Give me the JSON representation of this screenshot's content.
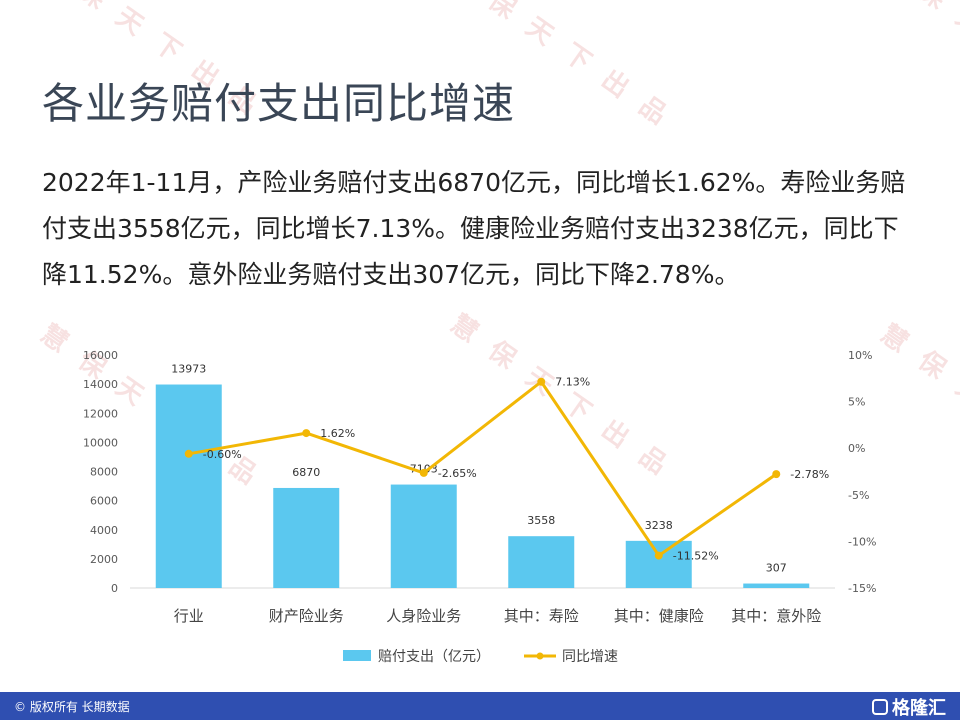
{
  "title": "各业务赔付支出同比增速",
  "paragraph": "2022年1-11月，产险业务赔付支出6870亿元，同比增长1.62%。寿险业务赔付支出3558亿元，同比增长7.13%。健康险业务赔付支出3238亿元，同比下降11.52%。意外险业务赔付支出307亿元，同比下降2.78%。",
  "watermark": {
    "text": "慧保天下出品",
    "color": "#dc7878"
  },
  "footer": {
    "copyright": "© 版权所有 长期数据",
    "brand": "格隆汇",
    "background": "#2f4fb1"
  },
  "chart_data": {
    "type": "bar",
    "categories": [
      "行业",
      "财产险业务",
      "人身险业务",
      "其中：寿险",
      "其中：健康险",
      "其中：意外险"
    ],
    "series": [
      {
        "name": "赔付支出（亿元）",
        "type": "bar",
        "axis": "left",
        "color": "#5bc8ef",
        "values": [
          13973,
          6870,
          7103,
          3558,
          3238,
          307
        ],
        "labels": [
          "13973",
          "6870",
          "7103",
          "3558",
          "3238",
          "307"
        ]
      },
      {
        "name": "同比增速",
        "type": "line",
        "axis": "right",
        "color": "#f2b705",
        "values": [
          -0.6,
          1.62,
          -2.65,
          7.13,
          -11.52,
          -2.78
        ],
        "labels": [
          "-0.60%",
          "1.62%",
          "-2.65%",
          "7.13%",
          "-11.52%",
          "-2.78%"
        ]
      }
    ],
    "y_left": {
      "ylim": [
        0,
        16000
      ],
      "ticks": [
        "0",
        "2000",
        "4000",
        "6000",
        "8000",
        "10000",
        "12000",
        "14000",
        "16000"
      ]
    },
    "y_right": {
      "ylim": [
        -15,
        10
      ],
      "ticks": [
        "-15%",
        "-10%",
        "-5%",
        "0%",
        "5%",
        "10%"
      ]
    },
    "legend_position": "bottom",
    "grid": false
  }
}
